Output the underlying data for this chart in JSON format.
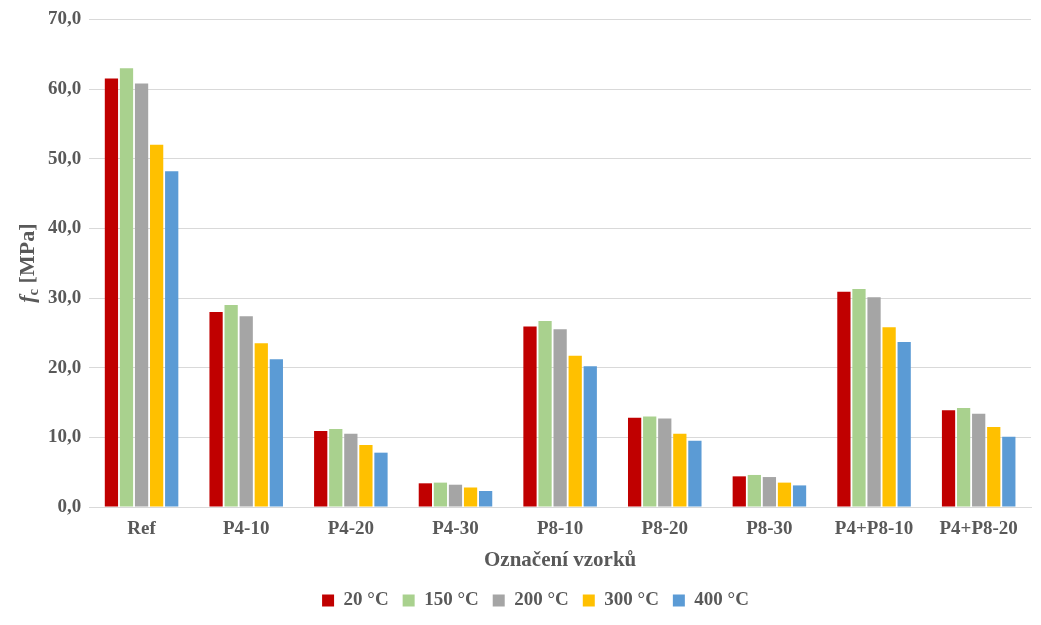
{
  "chart_data": {
    "type": "bar",
    "xlabel": "Označení vzorků",
    "ylabel": "f$_{c}$ [MPa]",
    "categories": [
      "Ref",
      "P4-10",
      "P4-20",
      "P4-30",
      "P8-10",
      "P8-20",
      "P8-30",
      "P4+P8-10",
      "P4+P8-20"
    ],
    "series": [
      {
        "name": "20 °C",
        "color": "#c00000",
        "values": [
          61.5,
          28.0,
          10.9,
          3.4,
          25.9,
          12.8,
          4.4,
          30.9,
          13.9
        ]
      },
      {
        "name": "150 °C",
        "color": "#a9d18e",
        "values": [
          63.0,
          29.0,
          11.2,
          3.5,
          26.7,
          13.0,
          4.6,
          31.3,
          14.2
        ]
      },
      {
        "name": "200 °C",
        "color": "#a5a5a5",
        "values": [
          60.8,
          27.4,
          10.5,
          3.2,
          25.5,
          12.7,
          4.3,
          30.1,
          13.4
        ]
      },
      {
        "name": "300 °C",
        "color": "#ffc000",
        "values": [
          52.0,
          23.5,
          8.9,
          2.8,
          21.7,
          10.5,
          3.5,
          25.8,
          11.5
        ]
      },
      {
        "name": "400 °C",
        "color": "#5b9bd5",
        "values": [
          48.2,
          21.2,
          7.8,
          2.3,
          20.2,
          9.5,
          3.1,
          23.7,
          10.1
        ]
      }
    ],
    "ylim": [
      0,
      70
    ],
    "yticks": [
      {
        "value": 0,
        "label": "0,0"
      },
      {
        "value": 10,
        "label": "10,0"
      },
      {
        "value": 20,
        "label": "20,0"
      },
      {
        "value": 30,
        "label": "30,0"
      },
      {
        "value": 40,
        "label": "40,0"
      },
      {
        "value": 50,
        "label": "50,0"
      },
      {
        "value": 60,
        "label": "60,0"
      },
      {
        "value": 70,
        "label": "70,0"
      }
    ],
    "grid": "y",
    "legend": "bottom"
  }
}
